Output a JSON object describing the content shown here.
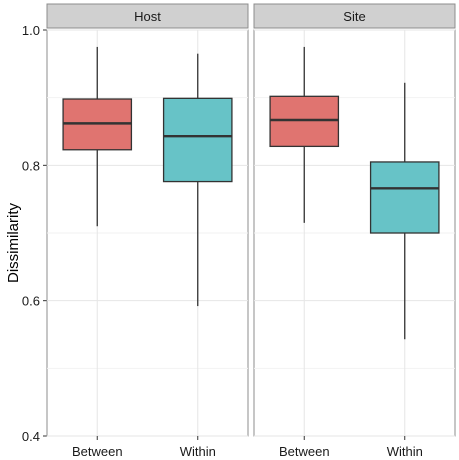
{
  "chart_data": {
    "type": "boxplot",
    "ylabel": "Dissimilarity",
    "xlabel": "",
    "ylim": [
      0.4,
      1.0
    ],
    "yticks": [
      "0.4",
      "0.6",
      "0.8",
      "1.0"
    ],
    "categories": [
      "Between",
      "Within"
    ],
    "colors": {
      "Between": "#e07470",
      "Within": "#67c3c7"
    },
    "facets": [
      {
        "name": "Host",
        "boxes": [
          {
            "category": "Between",
            "min": 0.71,
            "q1": 0.823,
            "median": 0.862,
            "q3": 0.898,
            "max": 0.975
          },
          {
            "category": "Within",
            "min": 0.592,
            "q1": 0.776,
            "median": 0.843,
            "q3": 0.899,
            "max": 0.965
          }
        ]
      },
      {
        "name": "Site",
        "boxes": [
          {
            "category": "Between",
            "min": 0.715,
            "q1": 0.828,
            "median": 0.867,
            "q3": 0.902,
            "max": 0.975
          },
          {
            "category": "Within",
            "min": 0.543,
            "q1": 0.7,
            "median": 0.766,
            "q3": 0.805,
            "max": 0.922
          }
        ]
      }
    ],
    "grid": true,
    "legend": "none"
  }
}
